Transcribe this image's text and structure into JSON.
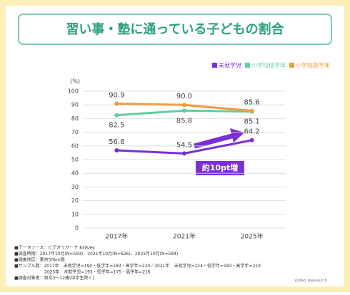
{
  "chart_data": {
    "type": "line",
    "title": "習い事・塾に通っている子どもの割合",
    "y_axis_label": "(%)",
    "categories": [
      "2017年",
      "2021年",
      "2025年"
    ],
    "series": [
      {
        "name": "未就学児",
        "color": "#7b2fd6",
        "values": [
          56.8,
          54.5,
          64.2
        ]
      },
      {
        "name": "小学校低学年",
        "color": "#5fcf9e",
        "values": [
          82.5,
          85.8,
          85.1
        ]
      },
      {
        "name": "小学校高学年",
        "color": "#f39a3d",
        "values": [
          90.9,
          90.0,
          85.6
        ],
        "value_labels": [
          "90.9",
          "90.0",
          "85.6"
        ]
      }
    ],
    "ylim": [
      0,
      100
    ],
    "yticks": [
      0,
      10,
      20,
      30,
      40,
      50,
      60,
      70,
      80,
      90,
      100
    ],
    "grid": true,
    "legend": "top-right",
    "annotation": "約10pt増",
    "notes": [
      "■データソース：ビデオリサーチ Kids/ex",
      "■調査時期：2017年10月(N=593)、2021年10月(N=626)、2025年10月(N=584)",
      "■調査地区：東京50km圏",
      "■サンプル数：2017年　未就学児=190・低学年=183・高学年=220／2021年　未就学児=224・低学年=183・高学年=219",
      "　　　　　　　2025年　未就学児=193・低学年=175・高学年=216",
      "■調査対象者：男女3～12歳(中学生除く)"
    ],
    "logo": "Video Research"
  }
}
